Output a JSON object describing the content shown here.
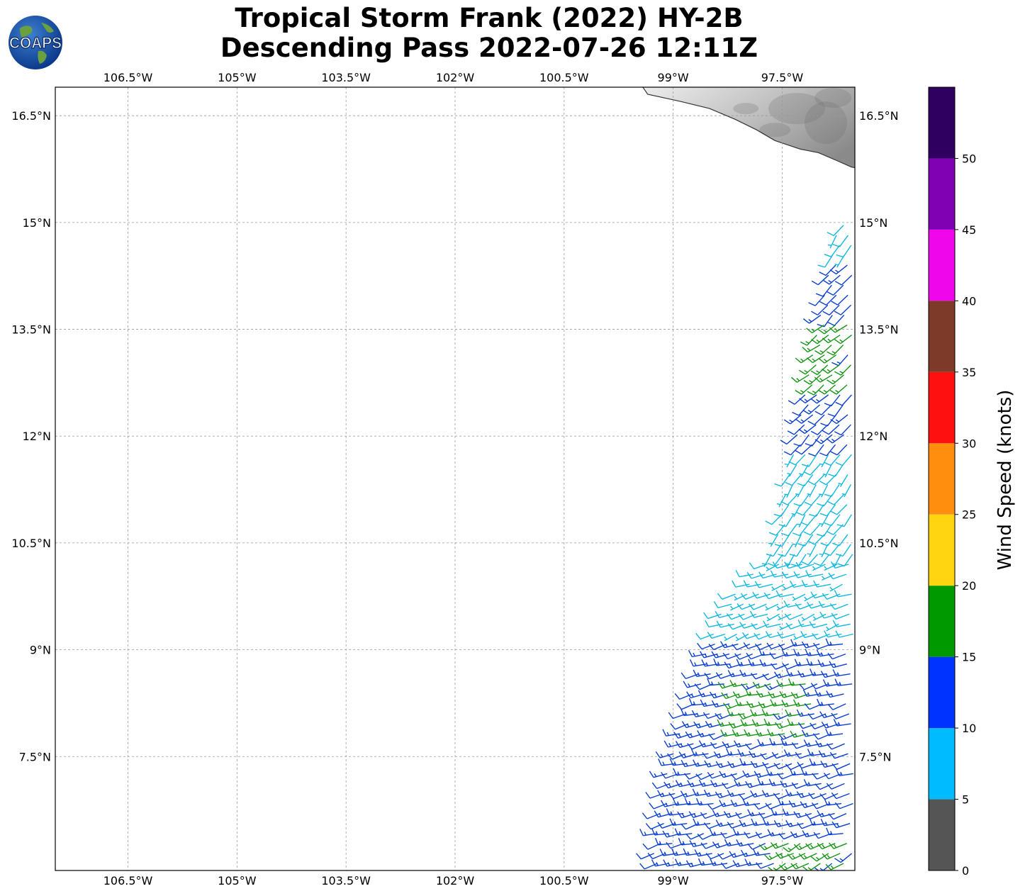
{
  "title": {
    "line1": "Tropical Storm Frank (2022) HY-2B",
    "line2": "Descending Pass 2022-07-26 12:11Z"
  },
  "logo": {
    "text": "COAPS",
    "icon": "globe-logo-icon"
  },
  "chart_data": {
    "type": "wind-barb-map",
    "title": "Tropical Storm Frank (2022) HY-2B Descending Pass 2022-07-26 12:11Z",
    "lon_range": [
      -107.5,
      -96.5
    ],
    "lat_range": [
      5.9,
      16.9
    ],
    "lon_ticks": [
      -106.5,
      -105,
      -103.5,
      -102,
      -100.5,
      -99,
      -97.5
    ],
    "lat_ticks": [
      16.5,
      15,
      13.5,
      12,
      10.5,
      9,
      7.5
    ],
    "lon_tick_labels": [
      "106.5°W",
      "105°W",
      "103.5°W",
      "102°W",
      "100.5°W",
      "99°W",
      "97.5°W"
    ],
    "lat_tick_labels": [
      "16.5°N",
      "15°N",
      "13.5°N",
      "12°N",
      "10.5°N",
      "9°N",
      "7.5°N"
    ],
    "grid": true,
    "swath": {
      "east_edge_lon": -96.5,
      "west_edge": [
        [
          15.1,
          -96.7
        ],
        [
          12.5,
          -97.2
        ],
        [
          10.4,
          -97.6
        ],
        [
          9.6,
          -98.3
        ],
        [
          8.8,
          -98.6
        ],
        [
          7.2,
          -99.1
        ],
        [
          5.9,
          -99.3
        ]
      ]
    },
    "wind_barbs": [
      {
        "lat_range": [
          14.5,
          15.1
        ],
        "speed_kt": 8,
        "dir_deg": 215
      },
      {
        "lat_range": [
          13.6,
          14.5
        ],
        "speed_kt": 12,
        "dir_deg": 225
      },
      {
        "lat_range": [
          12.7,
          13.6
        ],
        "speed_kt": 16,
        "dir_deg": 230
      },
      {
        "lat_range": [
          11.8,
          12.7
        ],
        "speed_kt": 12,
        "dir_deg": 225
      },
      {
        "lat_range": [
          10.2,
          11.8
        ],
        "speed_kt": 8,
        "dir_deg": 215
      },
      {
        "lat_range": [
          9.1,
          10.2
        ],
        "speed_kt": 8,
        "dir_deg": 250
      },
      {
        "lat_range": [
          5.9,
          9.1
        ],
        "speed_kt": 13,
        "dir_deg": 255
      },
      {
        "lat_range": [
          7.7,
          8.6
        ],
        "speed_kt": 16,
        "dir_deg": 255,
        "region": "center"
      },
      {
        "lat_range": [
          5.9,
          6.4
        ],
        "speed_kt": 16,
        "dir_deg": 240,
        "region": "east"
      }
    ],
    "colorbar": {
      "label": "Wind Speed (knots)",
      "boundaries": [
        0,
        5,
        10,
        15,
        20,
        25,
        30,
        35,
        40,
        45,
        50,
        55
      ],
      "tick_values": [
        0,
        5,
        10,
        15,
        20,
        25,
        30,
        35,
        40,
        45,
        50
      ],
      "tick_labels": [
        "0",
        "5",
        "10",
        "15",
        "20",
        "25",
        "30",
        "35",
        "40",
        "45",
        "50"
      ],
      "colors": [
        "#555555",
        "#00bbff",
        "#0033ff",
        "#009900",
        "#ffd511",
        "#ff8e0f",
        "#ff1010",
        "#7e3a28",
        "#f006ea",
        "#8000b3",
        "#300060"
      ]
    }
  }
}
